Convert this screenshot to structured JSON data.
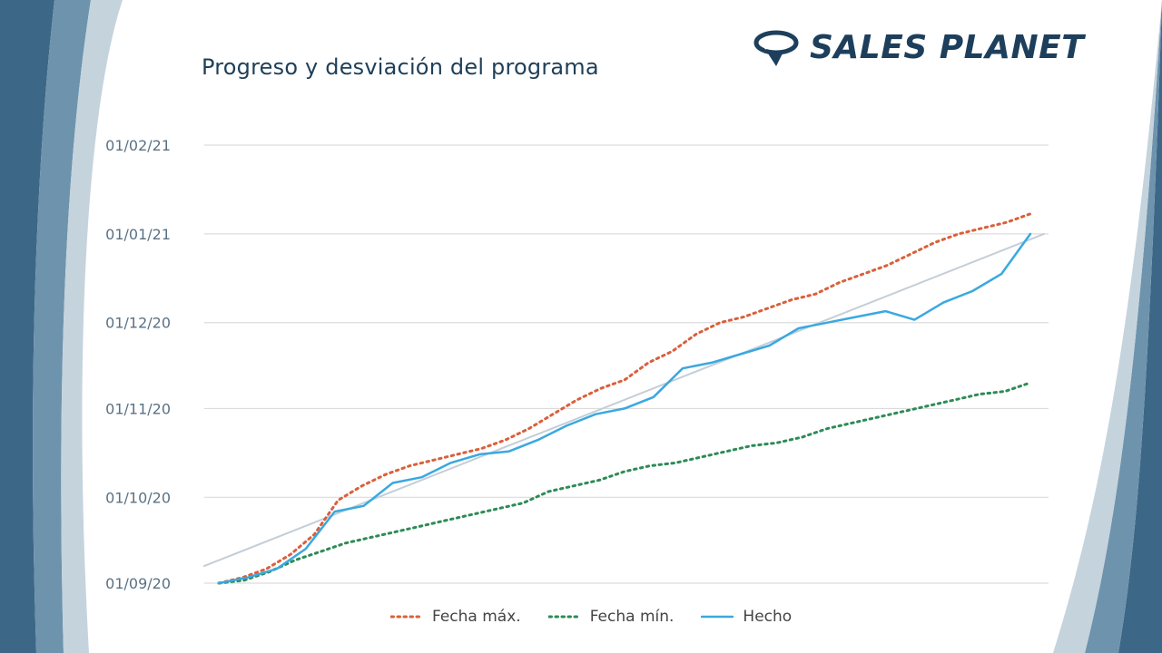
{
  "page": {
    "title": "Progreso y desviación del programa"
  },
  "logo": {
    "text": "SALES PLANET",
    "color": "#1d3f5c"
  },
  "colors": {
    "fecha_max": "#d9603b",
    "fecha_min": "#2e8b57",
    "hecho": "#3aa8e0",
    "trend": "#c3ced8",
    "grid": "#dcdcdc",
    "tick": "#5a7184",
    "bg_dark": "#3d6787",
    "bg_light": "#c5d3dd"
  },
  "chart_data": {
    "type": "line",
    "title": "",
    "xlabel": "",
    "ylabel": "",
    "y_axis": {
      "type": "date",
      "ticks": [
        "01/09/20",
        "01/10/20",
        "01/11/20",
        "01/12/20",
        "01/01/21",
        "01/02/21"
      ],
      "tick_dates": [
        "2020-09-01",
        "2020-10-01",
        "2020-11-01",
        "2020-12-01",
        "2021-01-01",
        "2021-02-01"
      ],
      "ylim": [
        "2020-09-01",
        "2021-02-01"
      ]
    },
    "grid": true,
    "legend": "bottom",
    "series": [
      {
        "name": "Fecha máx.",
        "style": "dotted",
        "color_key": "fecha_max",
        "values": [
          "2020-09-01",
          "2020-09-03",
          "2020-09-06",
          "2020-09-11",
          "2020-09-18",
          "2020-09-30",
          "2020-10-05",
          "2020-10-09",
          "2020-10-12",
          "2020-10-14",
          "2020-10-16",
          "2020-10-18",
          "2020-10-21",
          "2020-10-25",
          "2020-10-30",
          "2020-11-04",
          "2020-11-08",
          "2020-11-11",
          "2020-11-17",
          "2020-11-21",
          "2020-11-27",
          "2020-12-01",
          "2020-12-03",
          "2020-12-06",
          "2020-12-09",
          "2020-12-11",
          "2020-12-15",
          "2020-12-18",
          "2020-12-21",
          "2020-12-25",
          "2020-12-29",
          "2021-01-01",
          "2021-01-03",
          "2021-01-05",
          "2021-01-08"
        ]
      },
      {
        "name": "Fecha mín.",
        "style": "dotted",
        "color_key": "fecha_min",
        "values": [
          "2020-09-01",
          "2020-09-02",
          "2020-09-05",
          "2020-09-09",
          "2020-09-12",
          "2020-09-15",
          "2020-09-17",
          "2020-09-19",
          "2020-09-21",
          "2020-09-23",
          "2020-09-25",
          "2020-09-27",
          "2020-09-29",
          "2020-10-03",
          "2020-10-05",
          "2020-10-07",
          "2020-10-10",
          "2020-10-12",
          "2020-10-13",
          "2020-10-15",
          "2020-10-17",
          "2020-10-19",
          "2020-10-20",
          "2020-10-22",
          "2020-10-25",
          "2020-10-27",
          "2020-10-29",
          "2020-10-31",
          "2020-11-02",
          "2020-11-04",
          "2020-11-06",
          "2020-11-07",
          "2020-11-10"
        ]
      },
      {
        "name": "Hecho",
        "style": "solid",
        "color_key": "hecho",
        "values": [
          "2020-09-01",
          "2020-09-03",
          "2020-09-06",
          "2020-09-13",
          "2020-09-26",
          "2020-09-28",
          "2020-10-06",
          "2020-10-08",
          "2020-10-13",
          "2020-10-16",
          "2020-10-17",
          "2020-10-21",
          "2020-10-26",
          "2020-10-30",
          "2020-11-01",
          "2020-11-05",
          "2020-11-15",
          "2020-11-17",
          "2020-11-20",
          "2020-11-23",
          "2020-11-29",
          "2020-12-01",
          "2020-12-03",
          "2020-12-05",
          "2020-12-02",
          "2020-12-08",
          "2020-12-12",
          "2020-12-18",
          "2021-01-01"
        ]
      },
      {
        "style": "solid",
        "color_key": "trend",
        "values": [
          "2020-09-07",
          "2021-01-01"
        ]
      }
    ]
  },
  "legend": [
    {
      "label": "Fecha máx.",
      "color_key": "fecha_max",
      "style": "dotted"
    },
    {
      "label": "Fecha mín.",
      "color_key": "fecha_min",
      "style": "dotted"
    },
    {
      "label": "Hecho",
      "color_key": "hecho",
      "style": "solid"
    }
  ]
}
